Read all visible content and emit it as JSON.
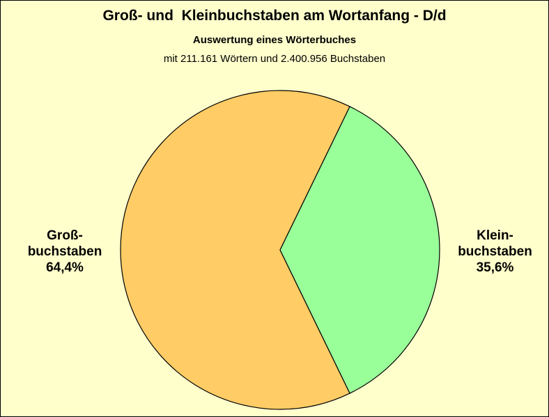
{
  "chart_data": {
    "type": "pie",
    "title": "Groß- und  Kleinbuchstaben am Wortanfang - D/d",
    "subtitle": "Auswertung eines Wörterbuches",
    "subtitle2": "mit 211.161 Wörtern und 2.400.956 Buchstaben",
    "slices": [
      {
        "label_line1": "Groß-",
        "label_line2": "buchstaben",
        "value": 64.4,
        "value_label": "64,4%",
        "color": "#ffcc66"
      },
      {
        "label_line1": "Klein-",
        "label_line2": "buchstaben",
        "value": 35.6,
        "value_label": "35,6%",
        "color": "#99ff99"
      }
    ]
  },
  "colors": {
    "background": "#ffffcc",
    "border": "#000000"
  }
}
